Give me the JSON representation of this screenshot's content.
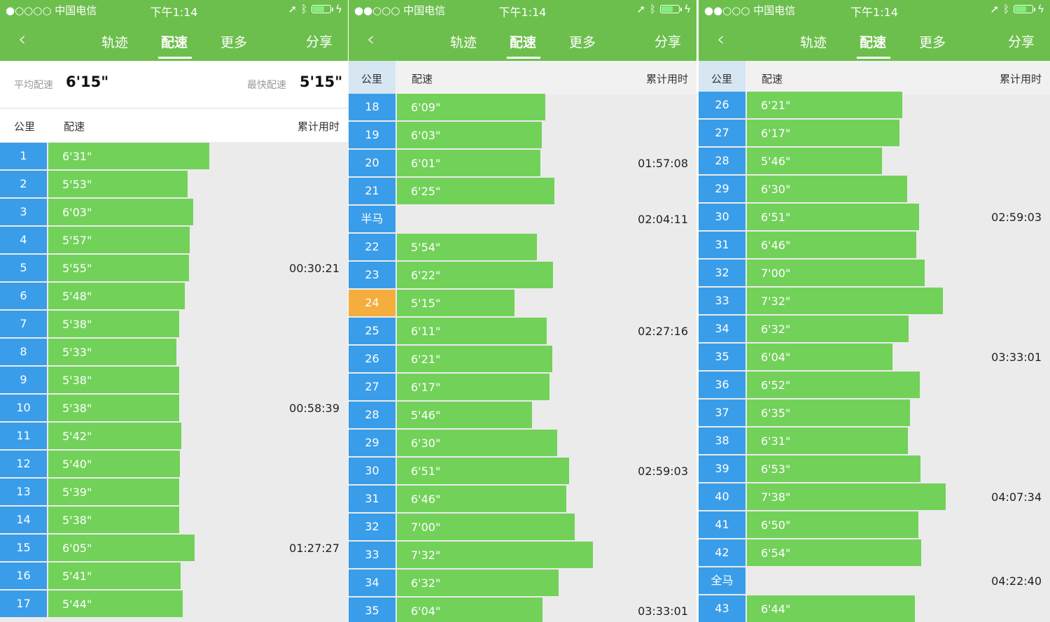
{
  "status_bar": {
    "carrier": "●○○○○ 中国电信",
    "carrier_alt": "●●○○○ 中国电信",
    "time": "下午1:14"
  },
  "nav": {
    "back_icon": "chevron-left-icon",
    "tabs": [
      "轨迹",
      "配速",
      "更多"
    ],
    "active_tab": "配速",
    "share": "分享"
  },
  "summary": {
    "avg_label": "平均配速",
    "avg_value": "6'15\"",
    "fast_label": "最快配速",
    "fast_value": "5'15\""
  },
  "table_header": {
    "km": "公里",
    "pace": "配速",
    "cumulative": "累计用时"
  },
  "colors": {
    "nav_green": "#6cbf4c",
    "bar_green": "#72d159",
    "km_blue": "#3a9de9",
    "best_orange": "#f5ad3e"
  },
  "panels": [
    {
      "rows": [
        {
          "km": "1",
          "pace": "6'31\"",
          "cum": ""
        },
        {
          "km": "2",
          "pace": "5'53\"",
          "cum": ""
        },
        {
          "km": "3",
          "pace": "6'03\"",
          "cum": ""
        },
        {
          "km": "4",
          "pace": "5'57\"",
          "cum": ""
        },
        {
          "km": "5",
          "pace": "5'55\"",
          "cum": "00:30:21"
        },
        {
          "km": "6",
          "pace": "5'48\"",
          "cum": ""
        },
        {
          "km": "7",
          "pace": "5'38\"",
          "cum": ""
        },
        {
          "km": "8",
          "pace": "5'33\"",
          "cum": ""
        },
        {
          "km": "9",
          "pace": "5'38\"",
          "cum": ""
        },
        {
          "km": "10",
          "pace": "5'38\"",
          "cum": "00:58:39"
        },
        {
          "km": "11",
          "pace": "5'42\"",
          "cum": ""
        },
        {
          "km": "12",
          "pace": "5'40\"",
          "cum": ""
        },
        {
          "km": "13",
          "pace": "5'39\"",
          "cum": ""
        },
        {
          "km": "14",
          "pace": "5'38\"",
          "cum": ""
        },
        {
          "km": "15",
          "pace": "6'05\"",
          "cum": "01:27:27"
        },
        {
          "km": "16",
          "pace": "5'41\"",
          "cum": ""
        },
        {
          "km": "17",
          "pace": "5'44\"",
          "cum": ""
        }
      ]
    },
    {
      "rows": [
        {
          "km": "18",
          "pace": "6'09\"",
          "cum": ""
        },
        {
          "km": "19",
          "pace": "6'03\"",
          "cum": ""
        },
        {
          "km": "20",
          "pace": "6'01\"",
          "cum": "01:57:08"
        },
        {
          "km": "21",
          "pace": "6'25\"",
          "cum": ""
        },
        {
          "km": "半马",
          "pace": "",
          "cum": "02:04:11"
        },
        {
          "km": "22",
          "pace": "5'54\"",
          "cum": ""
        },
        {
          "km": "23",
          "pace": "6'22\"",
          "cum": ""
        },
        {
          "km": "24",
          "pace": "5'15\"",
          "cum": "",
          "best": true
        },
        {
          "km": "25",
          "pace": "6'11\"",
          "cum": "02:27:16"
        },
        {
          "km": "26",
          "pace": "6'21\"",
          "cum": ""
        },
        {
          "km": "27",
          "pace": "6'17\"",
          "cum": ""
        },
        {
          "km": "28",
          "pace": "5'46\"",
          "cum": ""
        },
        {
          "km": "29",
          "pace": "6'30\"",
          "cum": ""
        },
        {
          "km": "30",
          "pace": "6'51\"",
          "cum": "02:59:03"
        },
        {
          "km": "31",
          "pace": "6'46\"",
          "cum": ""
        },
        {
          "km": "32",
          "pace": "7'00\"",
          "cum": ""
        },
        {
          "km": "33",
          "pace": "7'32\"",
          "cum": ""
        },
        {
          "km": "34",
          "pace": "6'32\"",
          "cum": ""
        },
        {
          "km": "35",
          "pace": "6'04\"",
          "cum": "03:33:01"
        }
      ]
    },
    {
      "rows": [
        {
          "km": "26",
          "pace": "6'21\"",
          "cum": ""
        },
        {
          "km": "27",
          "pace": "6'17\"",
          "cum": ""
        },
        {
          "km": "28",
          "pace": "5'46\"",
          "cum": ""
        },
        {
          "km": "29",
          "pace": "6'30\"",
          "cum": ""
        },
        {
          "km": "30",
          "pace": "6'51\"",
          "cum": "02:59:03"
        },
        {
          "km": "31",
          "pace": "6'46\"",
          "cum": ""
        },
        {
          "km": "32",
          "pace": "7'00\"",
          "cum": ""
        },
        {
          "km": "33",
          "pace": "7'32\"",
          "cum": ""
        },
        {
          "km": "34",
          "pace": "6'32\"",
          "cum": ""
        },
        {
          "km": "35",
          "pace": "6'04\"",
          "cum": "03:33:01"
        },
        {
          "km": "36",
          "pace": "6'52\"",
          "cum": ""
        },
        {
          "km": "37",
          "pace": "6'35\"",
          "cum": ""
        },
        {
          "km": "38",
          "pace": "6'31\"",
          "cum": ""
        },
        {
          "km": "39",
          "pace": "6'53\"",
          "cum": ""
        },
        {
          "km": "40",
          "pace": "7'38\"",
          "cum": "04:07:34"
        },
        {
          "km": "41",
          "pace": "6'50\"",
          "cum": ""
        },
        {
          "km": "42",
          "pace": "6'54\"",
          "cum": ""
        },
        {
          "km": "全马",
          "pace": "",
          "cum": "04:22:40"
        },
        {
          "km": "43",
          "pace": "6'44\"",
          "cum": ""
        }
      ]
    }
  ]
}
